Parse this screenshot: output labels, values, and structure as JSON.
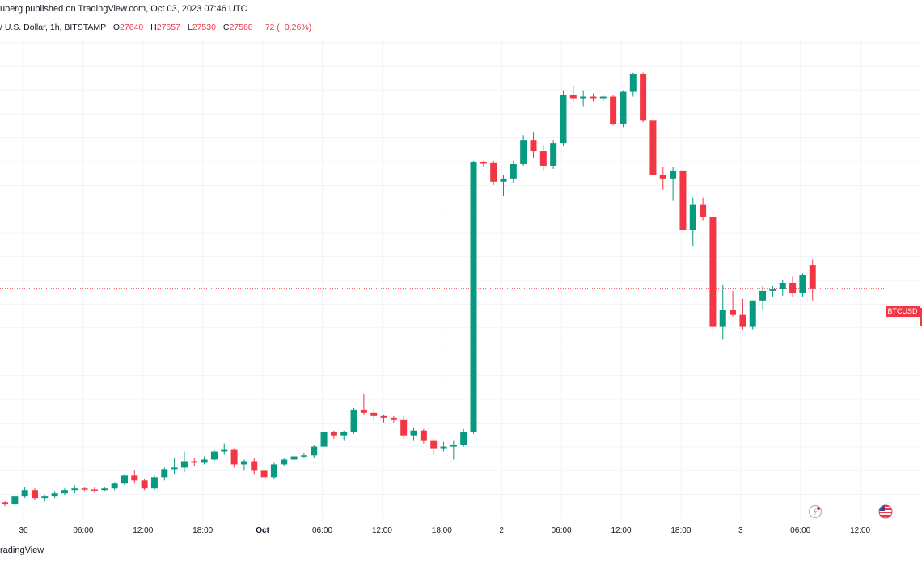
{
  "header": {
    "published": "uberg published on TradingView.com, Oct 03, 2023 07:46 UTC",
    "symbol": "/ U.S. Dollar, 1h, BITSTAMP",
    "open_label": "O",
    "open": "27640",
    "high_label": "H",
    "high": "27657",
    "low_label": "L",
    "low": "27530",
    "close_label": "C",
    "close": "27568",
    "change": "−72 (−0.26%)"
  },
  "price_badge": "BTCUSD",
  "footer": {
    "brand": "radingView"
  },
  "icons": {
    "goto_realtime": "lightning-icon",
    "flag": "us-flag-icon"
  },
  "colors": {
    "up": "#089981",
    "down": "#f23645",
    "grid": "#f0f3fa",
    "last_price_line": "#f23645"
  },
  "chart_data": {
    "type": "candlestick",
    "interval": "1h",
    "series": [
      {
        "name": "BTCUSD",
        "ohlc": [
          [
            26902,
            26905,
            26890,
            26895
          ],
          [
            26895,
            26925,
            26890,
            26920
          ],
          [
            26920,
            26950,
            26915,
            26940
          ],
          [
            26940,
            26945,
            26910,
            26915
          ],
          [
            26915,
            26925,
            26905,
            26920
          ],
          [
            26920,
            26935,
            26915,
            26930
          ],
          [
            26930,
            26945,
            26925,
            26940
          ],
          [
            26940,
            26955,
            26930,
            26945
          ],
          [
            26945,
            26950,
            26935,
            26942
          ],
          [
            26942,
            26948,
            26930,
            26940
          ],
          [
            26940,
            26950,
            26935,
            26945
          ],
          [
            26945,
            26965,
            26940,
            26960
          ],
          [
            26960,
            26990,
            26955,
            26985
          ],
          [
            26985,
            27000,
            26960,
            26970
          ],
          [
            26970,
            26975,
            26940,
            26945
          ],
          [
            26945,
            26985,
            26940,
            26980
          ],
          [
            26980,
            27010,
            26970,
            27005
          ],
          [
            27005,
            27040,
            26990,
            27010
          ],
          [
            27010,
            27060,
            26995,
            27030
          ],
          [
            27030,
            27040,
            27015,
            27025
          ],
          [
            27025,
            27045,
            27020,
            27035
          ],
          [
            27035,
            27065,
            27030,
            27060
          ],
          [
            27060,
            27085,
            27050,
            27065
          ],
          [
            27065,
            27070,
            27010,
            27020
          ],
          [
            27020,
            27035,
            27000,
            27030
          ],
          [
            27030,
            27040,
            26990,
            27000
          ],
          [
            27000,
            27005,
            26975,
            26980
          ],
          [
            26980,
            27025,
            26975,
            27020
          ],
          [
            27020,
            27040,
            27015,
            27035
          ],
          [
            27035,
            27050,
            27030,
            27045
          ],
          [
            27045,
            27055,
            27040,
            27048
          ],
          [
            27048,
            27080,
            27040,
            27075
          ],
          [
            27075,
            27125,
            27065,
            27120
          ],
          [
            27120,
            27125,
            27100,
            27110
          ],
          [
            27110,
            27125,
            27095,
            27120
          ],
          [
            27120,
            27195,
            27115,
            27190
          ],
          [
            27190,
            27240,
            27175,
            27180
          ],
          [
            27180,
            27190,
            27160,
            27170
          ],
          [
            27170,
            27175,
            27150,
            27165
          ],
          [
            27165,
            27170,
            27150,
            27160
          ],
          [
            27160,
            27170,
            27100,
            27110
          ],
          [
            27110,
            27135,
            27095,
            27125
          ],
          [
            27125,
            27130,
            27085,
            27095
          ],
          [
            27095,
            27100,
            27050,
            27070
          ],
          [
            27070,
            27090,
            27060,
            27075
          ],
          [
            27075,
            27095,
            27035,
            27080
          ],
          [
            27080,
            27130,
            27075,
            27120
          ],
          [
            27120,
            27965,
            27115,
            27960
          ],
          [
            27960,
            27965,
            27945,
            27958
          ],
          [
            27958,
            27965,
            27890,
            27900
          ],
          [
            27900,
            27920,
            27855,
            27910
          ],
          [
            27910,
            27965,
            27895,
            27955
          ],
          [
            27955,
            28045,
            27950,
            28030
          ],
          [
            28030,
            28055,
            27975,
            27995
          ],
          [
            27995,
            28015,
            27935,
            27950
          ],
          [
            27950,
            28030,
            27940,
            28020
          ],
          [
            28020,
            28185,
            28010,
            28170
          ],
          [
            28170,
            28200,
            28150,
            28160
          ],
          [
            28160,
            28185,
            28135,
            28165
          ],
          [
            28165,
            28175,
            28150,
            28160
          ],
          [
            28160,
            28170,
            28150,
            28165
          ],
          [
            28165,
            28170,
            28075,
            28080
          ],
          [
            28080,
            28185,
            28070,
            28180
          ],
          [
            28180,
            28240,
            28165,
            28235
          ],
          [
            28235,
            28240,
            28085,
            28090
          ],
          [
            28090,
            28110,
            27910,
            27920
          ],
          [
            27920,
            27945,
            27875,
            27910
          ],
          [
            27910,
            27945,
            27840,
            27935
          ],
          [
            27935,
            27945,
            27745,
            27750
          ],
          [
            27750,
            27850,
            27700,
            27830
          ],
          [
            27830,
            27850,
            27780,
            27790
          ],
          [
            27790,
            27805,
            27420,
            27450
          ],
          [
            27450,
            27580,
            27410,
            27500
          ],
          [
            27500,
            27560,
            27480,
            27485
          ],
          [
            27485,
            27535,
            27440,
            27450
          ],
          [
            27450,
            27530,
            27440,
            27530
          ],
          [
            27530,
            27575,
            27500,
            27560
          ],
          [
            27560,
            27575,
            27540,
            27565
          ],
          [
            27565,
            27595,
            27545,
            27585
          ],
          [
            27585,
            27605,
            27540,
            27552
          ],
          [
            27552,
            27615,
            27540,
            27610
          ],
          [
            27640,
            27657,
            27530,
            27568
          ]
        ]
      }
    ],
    "x_tick_labels": [
      "30",
      "06:00",
      "12:00",
      "18:00",
      "Oct",
      "06:00",
      "12:00",
      "18:00",
      "2",
      "06:00",
      "12:00",
      "18:00",
      "3",
      "06:00",
      "12:00"
    ],
    "last_price": 27568,
    "ylim": [
      26860,
      28340
    ],
    "grid": true
  }
}
